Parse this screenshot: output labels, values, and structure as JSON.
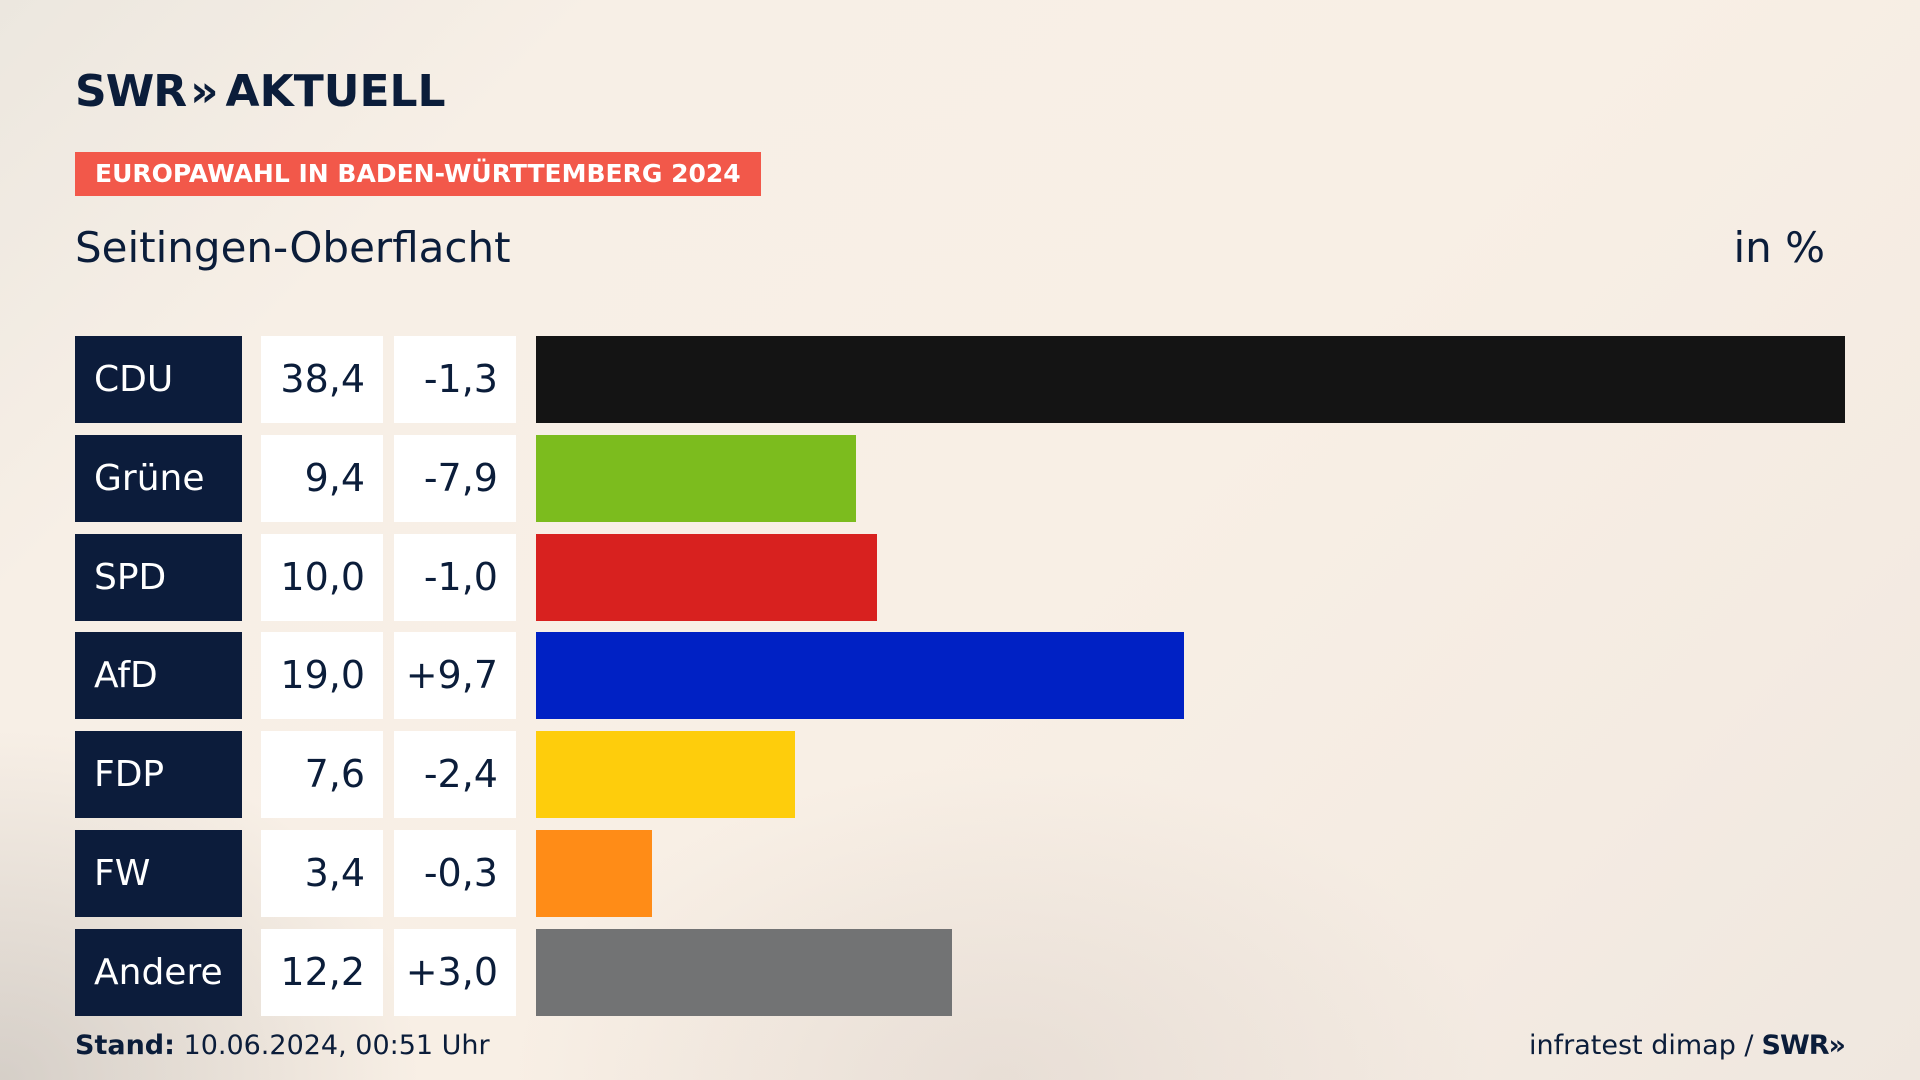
{
  "brand": {
    "logo_word1": "SWR",
    "logo_chevrons": "»",
    "logo_word2": "AKTUELL"
  },
  "header": {
    "badge": "EUROPAWAHL IN BADEN-WÜRTTEMBERG 2024",
    "place": "Seitingen-Oberflacht",
    "unit": "in %"
  },
  "chart_data": {
    "type": "bar",
    "orientation": "horizontal",
    "categories": [
      "CDU",
      "Grüne",
      "SPD",
      "AfD",
      "FDP",
      "FW",
      "Andere"
    ],
    "values": [
      38.4,
      9.4,
      10.0,
      19.0,
      7.6,
      3.4,
      12.2
    ],
    "value_labels": [
      "38,4",
      "9,4",
      "10,0",
      "19,0",
      "7,6",
      "3,4",
      "12,2"
    ],
    "diff_labels": [
      "-1,3",
      "-7,9",
      "-1,0",
      "+9,7",
      "-2,4",
      "-0,3",
      "+3,0"
    ],
    "colors": [
      "#141414",
      "#7cbc1e",
      "#d8211f",
      "#0021c4",
      "#fecd0c",
      "#ff8c17",
      "#727374"
    ],
    "xlim": [
      0,
      38.4
    ]
  },
  "footer": {
    "stand_label": "Stand:",
    "stand_value": "10.06.2024, 00:51 Uhr",
    "source": "infratest dimap /",
    "source_brand": "SWR»"
  }
}
